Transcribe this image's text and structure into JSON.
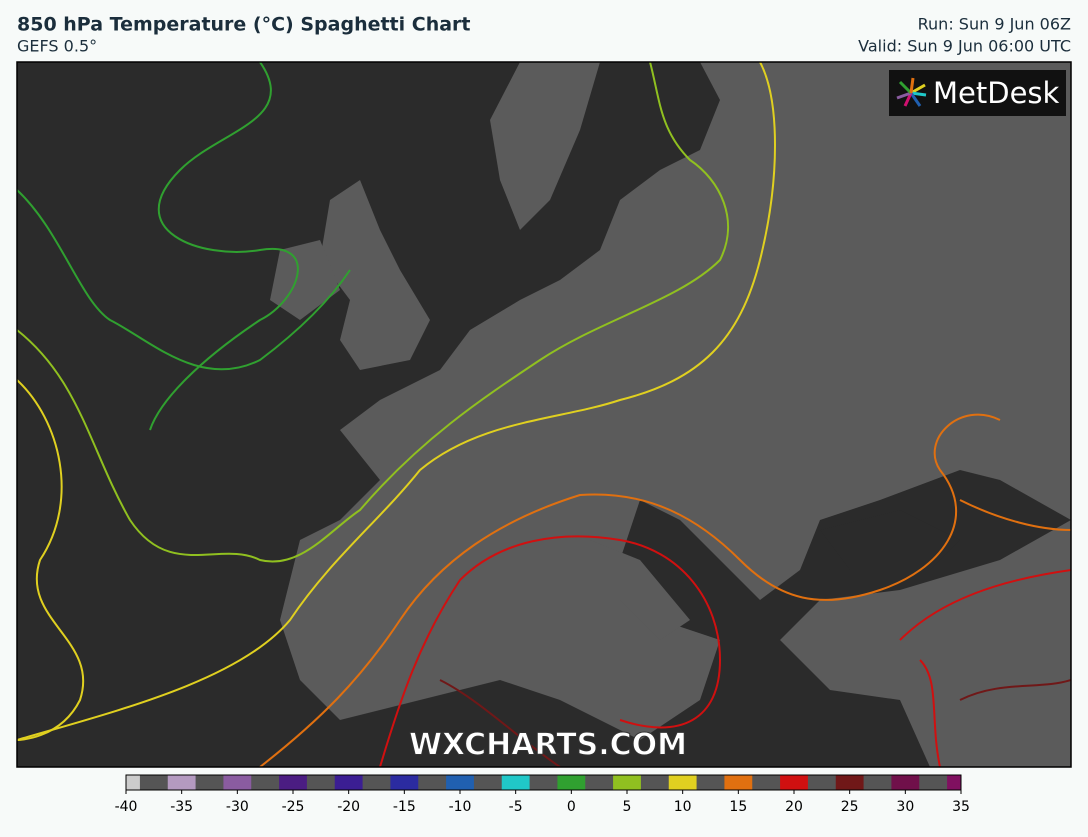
{
  "header": {
    "title": "850 hPa Temperature (°C) Spaghetti Chart",
    "subtitle": "GEFS 0.5°",
    "run": "Run: Sun 9 Jun 06Z",
    "valid": "Valid: Sun 9 Jun 06:00 UTC"
  },
  "logo": "MetDesk",
  "watermark": "WXCHARTS.COM",
  "colorbar": {
    "ticks": [
      -40,
      -35,
      -30,
      -25,
      -20,
      -15,
      -10,
      -5,
      0,
      5,
      10,
      15,
      20,
      25,
      30,
      35
    ],
    "colors": [
      "#cccccc",
      "#b49ac0",
      "#8a5ca0",
      "#4b1d82",
      "#3b1e93",
      "#2b2ba0",
      "#2060b0",
      "#20c8c8",
      "#30a030",
      "#90c020",
      "#e0d020",
      "#e07010",
      "#d01010",
      "#701818",
      "#70104a",
      "#801060"
    ]
  }
}
